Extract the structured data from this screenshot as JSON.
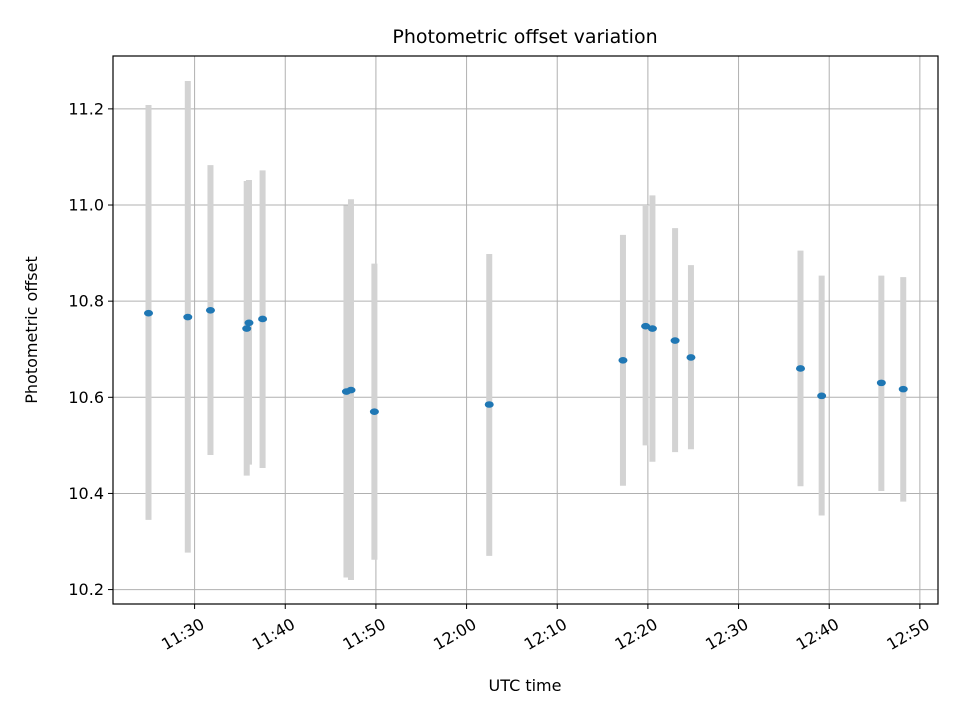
{
  "chart_data": {
    "type": "scatter",
    "title": "Photometric offset variation",
    "xlabel": "UTC time",
    "ylabel": "Photometric offset",
    "xlim": [
      "11:21",
      "12:52"
    ],
    "ylim": [
      10.17,
      11.31
    ],
    "xticks": [
      "11:30",
      "11:40",
      "11:50",
      "12:00",
      "12:10",
      "12:20",
      "12:30",
      "12:40",
      "12:50"
    ],
    "yticks": [
      "10.2",
      "10.4",
      "10.6",
      "10.8",
      "11.0",
      "11.2"
    ],
    "grid": true,
    "colors": {
      "point": "#1f77b4",
      "errorbar": "#d3d3d3",
      "grid": "#b0b0b0",
      "axis": "#000000"
    },
    "points": [
      {
        "x": "11:24:55",
        "y": 10.775,
        "ylow": 10.345,
        "yhigh": 11.208
      },
      {
        "x": "11:29:15",
        "y": 10.767,
        "ylow": 10.277,
        "yhigh": 11.258
      },
      {
        "x": "11:31:45",
        "y": 10.781,
        "ylow": 10.48,
        "yhigh": 11.083
      },
      {
        "x": "11:35:45",
        "y": 10.743,
        "ylow": 10.437,
        "yhigh": 11.05
      },
      {
        "x": "11:36:00",
        "y": 10.755,
        "ylow": 10.46,
        "yhigh": 11.052
      },
      {
        "x": "11:37:30",
        "y": 10.763,
        "ylow": 10.453,
        "yhigh": 11.072
      },
      {
        "x": "11:46:45",
        "y": 10.612,
        "ylow": 10.225,
        "yhigh": 10.999
      },
      {
        "x": "11:47:15",
        "y": 10.615,
        "ylow": 10.22,
        "yhigh": 11.012
      },
      {
        "x": "11:49:50",
        "y": 10.57,
        "ylow": 10.262,
        "yhigh": 10.878
      },
      {
        "x": "12:02:30",
        "y": 10.585,
        "ylow": 10.27,
        "yhigh": 10.898
      },
      {
        "x": "12:17:15",
        "y": 10.677,
        "ylow": 10.416,
        "yhigh": 10.938
      },
      {
        "x": "12:19:45",
        "y": 10.748,
        "ylow": 10.5,
        "yhigh": 11.0
      },
      {
        "x": "12:20:30",
        "y": 10.743,
        "ylow": 10.466,
        "yhigh": 11.02
      },
      {
        "x": "12:23:00",
        "y": 10.718,
        "ylow": 10.486,
        "yhigh": 10.952
      },
      {
        "x": "12:24:45",
        "y": 10.683,
        "ylow": 10.492,
        "yhigh": 10.875
      },
      {
        "x": "12:36:50",
        "y": 10.66,
        "ylow": 10.415,
        "yhigh": 10.905
      },
      {
        "x": "12:39:10",
        "y": 10.603,
        "ylow": 10.354,
        "yhigh": 10.853
      },
      {
        "x": "12:45:45",
        "y": 10.63,
        "ylow": 10.405,
        "yhigh": 10.853
      },
      {
        "x": "12:48:10",
        "y": 10.617,
        "ylow": 10.383,
        "yhigh": 10.85
      }
    ]
  }
}
